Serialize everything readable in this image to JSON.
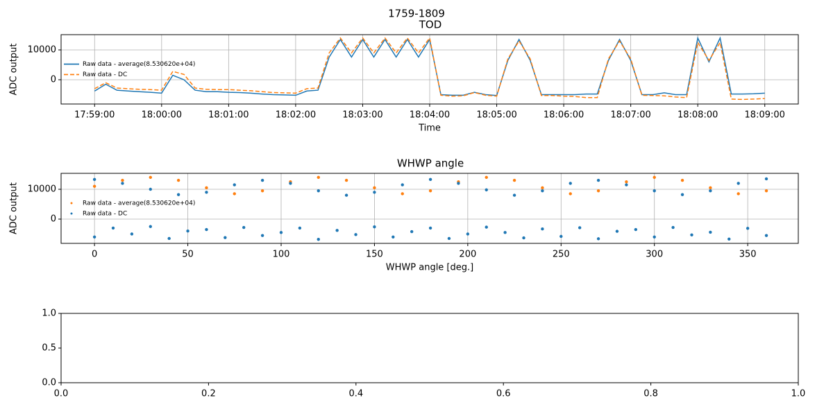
{
  "title": "1759-1809",
  "chart_data": [
    {
      "type": "line",
      "title": "TOD",
      "xlabel": "Time",
      "ylabel": "ADC output",
      "x": [
        "17:59:00",
        "17:59:10",
        "17:59:20",
        "17:59:30",
        "17:59:40",
        "17:59:50",
        "18:00:00",
        "18:00:10",
        "18:00:20",
        "18:00:30",
        "18:00:40",
        "18:00:50",
        "18:01:00",
        "18:01:10",
        "18:01:20",
        "18:01:30",
        "18:01:40",
        "18:01:50",
        "18:02:00",
        "18:02:10",
        "18:02:20",
        "18:02:30",
        "18:02:40",
        "18:02:50",
        "18:03:00",
        "18:03:10",
        "18:03:20",
        "18:03:30",
        "18:03:40",
        "18:03:50",
        "18:04:00",
        "18:04:10",
        "18:04:20",
        "18:04:30",
        "18:04:40",
        "18:04:50",
        "18:05:00",
        "18:05:10",
        "18:05:20",
        "18:05:30",
        "18:05:40",
        "18:05:50",
        "18:06:00",
        "18:06:10",
        "18:06:20",
        "18:06:30",
        "18:06:40",
        "18:06:50",
        "18:07:00",
        "18:07:10",
        "18:07:20",
        "18:07:30",
        "18:07:40",
        "18:07:50",
        "18:08:00",
        "18:08:10",
        "18:08:20",
        "18:08:30",
        "18:08:40",
        "18:08:50",
        "18:09:00"
      ],
      "series": [
        {
          "name": "Raw data - average(8.530620e+04)",
          "color": "#1f77b4",
          "linestyle": "solid",
          "values": [
            -3800,
            -1500,
            -3500,
            -3800,
            -4000,
            -4200,
            -4500,
            1500,
            0,
            -3500,
            -4000,
            -4000,
            -4200,
            -4300,
            -4500,
            -4800,
            -5000,
            -5100,
            -5200,
            -3800,
            -3500,
            7600,
            13500,
            7600,
            13500,
            7600,
            13500,
            7600,
            13500,
            7600,
            13500,
            -5000,
            -5200,
            -5200,
            -4200,
            -5000,
            -5300,
            6500,
            13500,
            6500,
            -5000,
            -5000,
            -5000,
            -5000,
            -4800,
            -4800,
            6500,
            13500,
            6500,
            -5000,
            -5000,
            -4400,
            -5000,
            -5000,
            14000,
            6000,
            14000,
            -4800,
            -4800,
            -4700,
            -4500
          ]
        },
        {
          "name": "Raw data - DC",
          "color": "#ff7f0e",
          "linestyle": "dashed",
          "values": [
            -3000,
            -1000,
            -2800,
            -3000,
            -3200,
            -3300,
            -3500,
            2800,
            1800,
            -2800,
            -3200,
            -3300,
            -3300,
            -3500,
            -3700,
            -4000,
            -4300,
            -4400,
            -4500,
            -3000,
            -2800,
            9000,
            14000,
            9000,
            14000,
            9000,
            14000,
            9000,
            14000,
            9000,
            14000,
            -5200,
            -5500,
            -5400,
            -4300,
            -5200,
            -5500,
            7000,
            13000,
            7000,
            -5300,
            -5300,
            -5500,
            -5600,
            -6000,
            -6000,
            7000,
            13000,
            7000,
            -5200,
            -5300,
            -5400,
            -5800,
            -6000,
            12500,
            6500,
            12500,
            -6500,
            -6600,
            -6500,
            -6300
          ]
        }
      ],
      "xlim": [
        "17:58:30",
        "18:09:30"
      ],
      "xticks": [
        "17:59:00",
        "18:00:00",
        "18:01:00",
        "18:02:00",
        "18:03:00",
        "18:04:00",
        "18:05:00",
        "18:06:00",
        "18:07:00",
        "18:08:00",
        "18:09:00"
      ],
      "ylim": [
        -8140,
        15120
      ],
      "yticks": [
        0,
        10000
      ],
      "grid": true,
      "legend": "center left"
    },
    {
      "type": "scatter",
      "title": "WHWP angle",
      "xlabel": "WHWP angle [deg.]",
      "ylabel": "ADC output",
      "series": [
        {
          "name": "Raw data - average(8.530620e+04)",
          "color": "#ff7f0e",
          "x": [
            0,
            15,
            30,
            45,
            60,
            75,
            90,
            105,
            120,
            135,
            150,
            165,
            180,
            195,
            210,
            225,
            240,
            255,
            270,
            285,
            300,
            315,
            330,
            345,
            360
          ],
          "values": [
            11000,
            13000,
            14000,
            13000,
            10500,
            8500,
            9500,
            12500,
            14000,
            13000,
            10500,
            8500,
            9500,
            12500,
            14000,
            13000,
            10500,
            8500,
            9500,
            12500,
            14000,
            13000,
            10500,
            8500,
            9500
          ]
        },
        {
          "name": "Raw data - DC",
          "color": "#1f77b4",
          "x": [
            0,
            10,
            20,
            30,
            40,
            50,
            60,
            70,
            80,
            90,
            100,
            110,
            120,
            130,
            140,
            150,
            160,
            170,
            180,
            190,
            200,
            210,
            220,
            230,
            240,
            250,
            260,
            270,
            280,
            290,
            300,
            310,
            320,
            330,
            340,
            350,
            360,
            0,
            15,
            30,
            45,
            60,
            75,
            90,
            105,
            120,
            135,
            150,
            165,
            180,
            195,
            210,
            225,
            240,
            255,
            270,
            285,
            300,
            315,
            330,
            345,
            360
          ],
          "values": [
            -6000,
            -3000,
            -5000,
            -2500,
            -6500,
            -4000,
            -3500,
            -6200,
            -2800,
            -5500,
            -4500,
            -3000,
            -6800,
            -3800,
            -5200,
            -2600,
            -6000,
            -4200,
            -3000,
            -6500,
            -5000,
            -2700,
            -4500,
            -6300,
            -3300,
            -5800,
            -2900,
            -6600,
            -4100,
            -3500,
            -6000,
            -2800,
            -5300,
            -4400,
            -6700,
            -3100,
            -5500,
            13300,
            12000,
            10000,
            8200,
            9000,
            11500,
            13000,
            12000,
            9500,
            8000,
            9000,
            11500,
            13300,
            12000,
            9800,
            8000,
            9500,
            12000,
            13000,
            11500,
            9500,
            8200,
            9500,
            12000,
            13500
          ]
        }
      ],
      "xlim": [
        -17.9,
        377.1
      ],
      "xticks": [
        0,
        50,
        100,
        150,
        200,
        250,
        300,
        350
      ],
      "ylim": [
        -8140,
        15350
      ],
      "yticks": [
        0,
        10000
      ],
      "grid": true,
      "legend": "center left"
    },
    {
      "type": "line",
      "xlim": [
        0,
        1
      ],
      "xticks": [
        {
          "value": 0,
          "label": "0.0"
        },
        {
          "value": 0.2,
          "label": "0.2"
        },
        {
          "value": 0.4,
          "label": "0.4"
        },
        {
          "value": 0.6,
          "label": "0.6"
        },
        {
          "value": 0.8,
          "label": "0.8"
        },
        {
          "value": 1,
          "label": "1.0"
        }
      ],
      "ylim": [
        0,
        1
      ],
      "yticks": [
        {
          "value": 0,
          "label": "0.0"
        },
        {
          "value": 0.5,
          "label": "0.5"
        },
        {
          "value": 1,
          "label": "1.0"
        }
      ],
      "grid": false
    }
  ]
}
